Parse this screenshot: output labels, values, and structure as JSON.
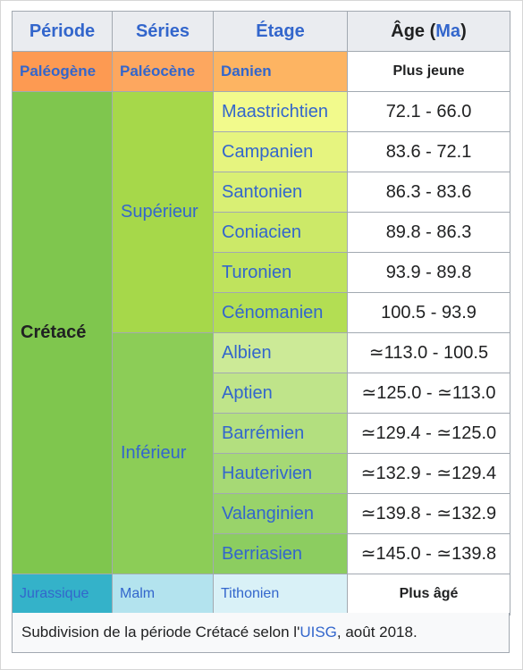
{
  "headers": {
    "period": "Période",
    "series": "Séries",
    "stage": "Étage",
    "age_prefix": "Âge (",
    "age_unit": "Ma",
    "age_suffix": ")"
  },
  "rows": {
    "paleogene": {
      "period": "Paléogène",
      "series": "Paléocène",
      "stage": "Danien",
      "age": "Plus jeune"
    },
    "cretace": {
      "period": "Crétacé",
      "superieur": "Supérieur",
      "inferieur": "Inférieur",
      "stages": [
        {
          "name": "Maastrichtien",
          "age": "72.1 - 66.0"
        },
        {
          "name": "Campanien",
          "age": "83.6 - 72.1"
        },
        {
          "name": "Santonien",
          "age": "86.3 - 83.6"
        },
        {
          "name": "Coniacien",
          "age": "89.8 - 86.3"
        },
        {
          "name": "Turonien",
          "age": "93.9 - 89.8"
        },
        {
          "name": "Cénomanien",
          "age": "100.5 - 93.9"
        },
        {
          "name": "Albien",
          "age": "≃113.0 - 100.5"
        },
        {
          "name": "Aptien",
          "age": "≃125.0 - ≃113.0"
        },
        {
          "name": "Barrémien",
          "age": "≃129.4 - ≃125.0"
        },
        {
          "name": "Hauterivien",
          "age": "≃132.9 - ≃129.4"
        },
        {
          "name": "Valanginien",
          "age": "≃139.8 - ≃132.9"
        },
        {
          "name": "Berriasien",
          "age": "≃145.0 - ≃139.8"
        }
      ]
    },
    "jurassique": {
      "period": "Jurassique",
      "series": "Malm",
      "stage": "Tithonien",
      "age": "Plus âgé"
    }
  },
  "caption": {
    "before": "Subdivision de la période Crétacé selon l'",
    "link": "UISG",
    "after": ", août 2018."
  },
  "colors": {
    "header_bg": "#eaecf0",
    "link": "#3366cc",
    "paleogene": "#fd9a52",
    "paleocene": "#fda75f",
    "danien": "#fdb462",
    "cretace": "#7fc64e",
    "superieur": "#a6d84a",
    "inferieur": "#8ccd57",
    "jurassique": "#34b2c9",
    "malm": "#b3e3ee",
    "tithonien": "#d9f1f7",
    "stages": [
      "#f2fa8c",
      "#e6f47f",
      "#d9ef74",
      "#cce968",
      "#bfe35d",
      "#b3de53",
      "#ccea97",
      "#bfe48a",
      "#b3df7f",
      "#a6d975",
      "#99d36a",
      "#8ccd60"
    ]
  }
}
